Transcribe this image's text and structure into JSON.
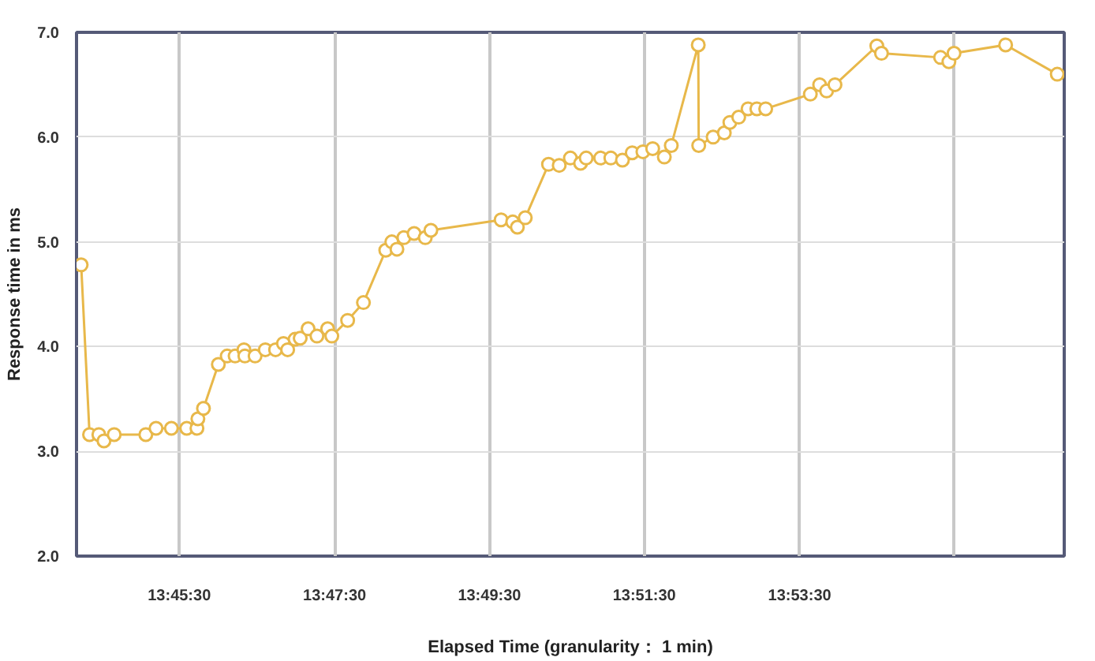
{
  "chart_data": {
    "type": "line",
    "xlabel": "Elapsed Time (granularity： 1 min)",
    "ylabel": "Response time in ms",
    "marker": "circle",
    "grid": true,
    "xlim": [
      13.7362,
      13.9486
    ],
    "ylim": [
      2,
      7
    ],
    "xticks": [
      {
        "value": 13.7583,
        "label": "13:45:30"
      },
      {
        "value": 13.7917,
        "label": "13:47:30"
      },
      {
        "value": 13.825,
        "label": "13:49:30"
      },
      {
        "value": 13.8583,
        "label": "13:51:30"
      },
      {
        "value": 13.8917,
        "label": "13:53:30"
      },
      {
        "value": 13.925,
        "label": null
      }
    ],
    "yticks": [
      {
        "value": 2,
        "label": "2.0"
      },
      {
        "value": 3,
        "label": "3.0"
      },
      {
        "value": 4,
        "label": "4.0"
      },
      {
        "value": 5,
        "label": "5.0"
      },
      {
        "value": 6,
        "label": "6.0"
      },
      {
        "value": 7,
        "label": "7.0"
      }
    ],
    "series": [
      {
        "color": "#e8b84a",
        "x": [
          13.7372,
          13.739,
          13.741,
          13.7421,
          13.7443,
          13.7511,
          13.7533,
          13.7566,
          13.7599,
          13.7621,
          13.7623,
          13.7635,
          13.7667,
          13.7686,
          13.7703,
          13.7722,
          13.7724,
          13.7746,
          13.7768,
          13.779,
          13.7807,
          13.7816,
          13.7832,
          13.7843,
          13.786,
          13.7879,
          13.7902,
          13.7911,
          13.7945,
          13.7979,
          13.8027,
          13.804,
          13.8051,
          13.8066,
          13.8088,
          13.8112,
          13.8124,
          13.8275,
          13.83,
          13.831,
          13.8327,
          13.8377,
          13.84,
          13.8424,
          13.8446,
          13.8458,
          13.8489,
          13.8511,
          13.8536,
          13.8557,
          13.858,
          13.8601,
          13.8626,
          13.8641,
          13.8699,
          13.87,
          13.8731,
          13.8755,
          13.8767,
          13.8786,
          13.8806,
          13.8825,
          13.8844,
          13.894,
          13.896,
          13.8975,
          13.8993,
          13.9083,
          13.9093,
          13.922,
          13.9238,
          13.9249,
          13.936,
          13.9471
        ],
        "values": [
          4.78,
          3.16,
          3.16,
          3.1,
          3.16,
          3.16,
          3.22,
          3.22,
          3.22,
          3.22,
          3.31,
          3.41,
          3.83,
          3.91,
          3.91,
          3.97,
          3.91,
          3.91,
          3.97,
          3.97,
          4.03,
          3.97,
          4.07,
          4.08,
          4.17,
          4.1,
          4.17,
          4.1,
          4.25,
          4.42,
          4.92,
          5.0,
          4.93,
          5.04,
          5.08,
          5.04,
          5.11,
          5.21,
          5.19,
          5.14,
          5.23,
          5.74,
          5.73,
          5.8,
          5.75,
          5.8,
          5.8,
          5.8,
          5.78,
          5.85,
          5.86,
          5.89,
          5.81,
          5.92,
          6.88,
          5.92,
          6.0,
          6.04,
          6.14,
          6.19,
          6.27,
          6.27,
          6.27,
          6.41,
          6.5,
          6.44,
          6.5,
          6.87,
          6.8,
          6.76,
          6.72,
          6.8,
          6.88,
          6.6
        ]
      }
    ]
  }
}
